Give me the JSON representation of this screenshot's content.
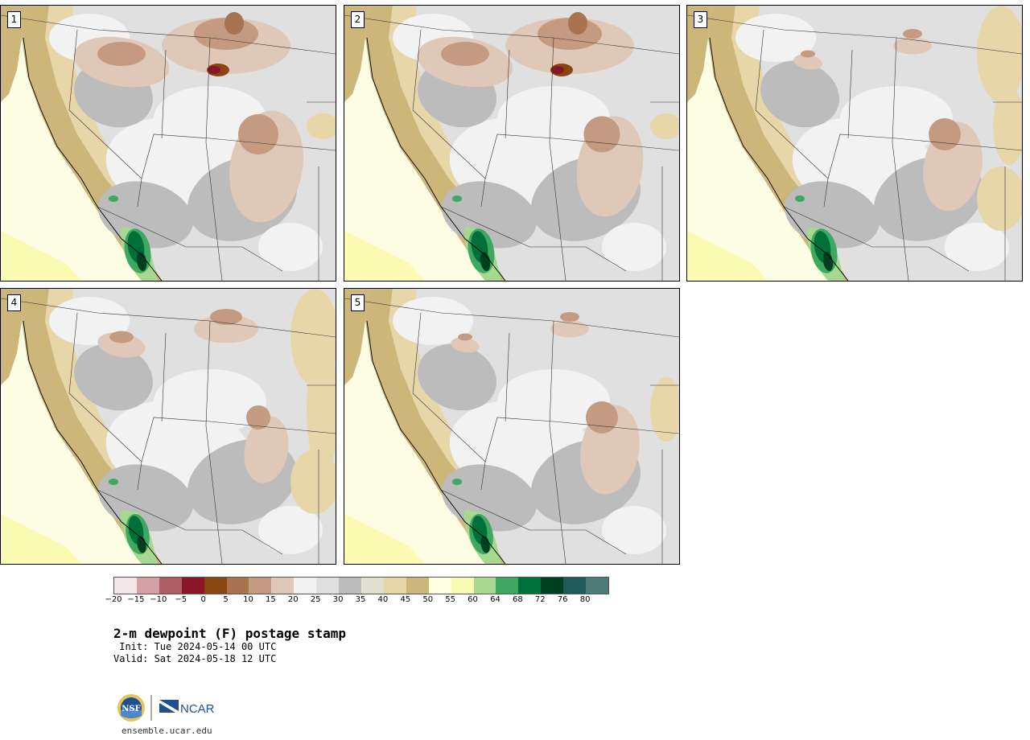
{
  "panels": [
    {
      "label": "1"
    },
    {
      "label": "2"
    },
    {
      "label": "3"
    },
    {
      "label": "4"
    },
    {
      "label": "5"
    }
  ],
  "colorbar": {
    "colors": [
      "#f5e6e8",
      "#d4a0a4",
      "#b05c64",
      "#8a1526",
      "#8a4510",
      "#a87450",
      "#c49a80",
      "#e0c8b8",
      "#f2f2f2",
      "#e0e0e0",
      "#bcbcbc",
      "#e2e0d0",
      "#e6d6a8",
      "#ccb67a",
      "#fefee2",
      "#fafab2",
      "#a6d890",
      "#3ea860",
      "#00703a",
      "#004020",
      "#1e5a5a",
      "#4e7a7a"
    ],
    "ticks": [
      "−20",
      "−15",
      "−10",
      "−5",
      "0",
      "5",
      "10",
      "15",
      "20",
      "25",
      "30",
      "35",
      "40",
      "45",
      "50",
      "55",
      "60",
      "64",
      "68",
      "72",
      "76",
      "80"
    ]
  },
  "title": "2-m dewpoint (F) postage stamp",
  "init": " Init: Tue 2024-05-14 00 UTC",
  "valid": "Valid: Sat 2024-05-18 12 UTC",
  "logos": {
    "nsf": "NSF",
    "ncar": "NCAR"
  },
  "credit": "ensemble.ucar.edu"
}
